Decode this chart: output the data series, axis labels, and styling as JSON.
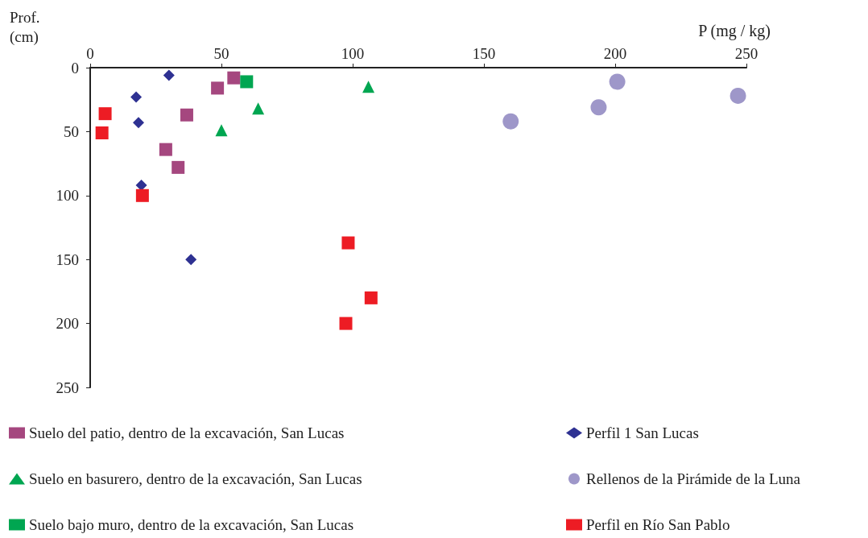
{
  "chart_data": {
    "type": "scatter",
    "xlabel": "P (mg / kg)",
    "ylabel": "Prof.\n(cm)",
    "xlim": [
      0,
      250
    ],
    "xticks": [
      0,
      50,
      100,
      150,
      200,
      250
    ],
    "ylim": [
      250,
      0
    ],
    "yticks": [
      0,
      50,
      100,
      150,
      200,
      250
    ],
    "grid": false,
    "legend": "bottom",
    "series": [
      {
        "name": "Suelo del patio, dentro de la excavación, San Lucas",
        "color": "#a5477f",
        "marker": "square",
        "x": [
          48.5,
          54.7,
          36.8,
          28.8,
          33.5
        ],
        "values": [
          16,
          8,
          37,
          64,
          78
        ]
      },
      {
        "name": "Suelo en basurero, dentro de la excavación, San Lucas",
        "color": "#00a651",
        "marker": "triangle",
        "x": [
          106,
          64,
          50
        ],
        "values": [
          15,
          32,
          49
        ]
      },
      {
        "name": "Suelo bajo muro, dentro de la excavación, San Lucas",
        "color": "#00a651",
        "marker": "square",
        "x": [
          59.6
        ],
        "values": [
          11
        ]
      },
      {
        "name": "Perfil 1 San Lucas",
        "color": "#2e3192",
        "marker": "diamond",
        "x": [
          30,
          17.5,
          18.4,
          19.5,
          38.4
        ],
        "values": [
          6,
          23,
          43,
          92,
          150
        ]
      },
      {
        "name": "Rellenos de la Pirámide de la Luna",
        "color": "#9e97c9",
        "marker": "circle",
        "x": [
          200.8,
          193.7,
          160.2,
          246.8
        ],
        "values": [
          11,
          31,
          42,
          22
        ]
      },
      {
        "name": "Perfil en Río San Pablo",
        "color": "#ed1c24",
        "marker": "square",
        "x": [
          5.7,
          4.5,
          19.9,
          98.3,
          107,
          97.4
        ],
        "values": [
          36,
          51,
          100,
          137,
          180,
          200
        ]
      }
    ]
  }
}
